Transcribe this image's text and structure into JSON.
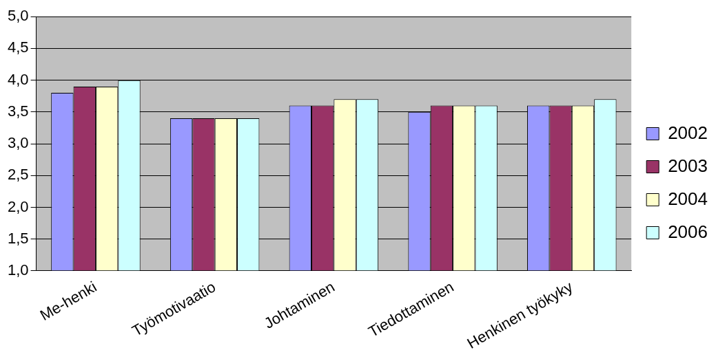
{
  "chart_data": {
    "type": "bar",
    "categories": [
      "Me-henki",
      "Työmotivaatio",
      "Johtaminen",
      "Tiedottaminen",
      "Henkinen työkyky"
    ],
    "series": [
      {
        "name": "2002",
        "color": "#9999ff",
        "values": [
          3.8,
          3.4,
          3.6,
          3.5,
          3.6
        ]
      },
      {
        "name": "2003",
        "color": "#993366",
        "values": [
          3.9,
          3.4,
          3.6,
          3.6,
          3.6
        ]
      },
      {
        "name": "2004",
        "color": "#ffffcc",
        "values": [
          3.9,
          3.4,
          3.7,
          3.6,
          3.6
        ]
      },
      {
        "name": "2006",
        "color": "#ccffff",
        "values": [
          4.0,
          3.4,
          3.7,
          3.6,
          3.7
        ]
      }
    ],
    "ylim": [
      1,
      5
    ],
    "yticks": [
      {
        "value": 1,
        "label": "1,0"
      },
      {
        "value": 1.5,
        "label": "1,5"
      },
      {
        "value": 2,
        "label": "2,0"
      },
      {
        "value": 2.5,
        "label": "2,5"
      },
      {
        "value": 3,
        "label": "3,0"
      },
      {
        "value": 3.5,
        "label": "3,5"
      },
      {
        "value": 4,
        "label": "4,0"
      },
      {
        "value": 4.5,
        "label": "4,5"
      },
      {
        "value": 5,
        "label": "5,0"
      }
    ],
    "grid": "y",
    "legend": "right"
  }
}
